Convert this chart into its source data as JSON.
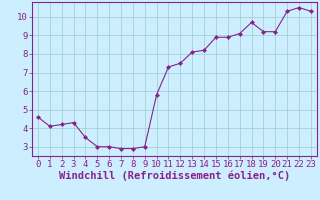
{
  "x": [
    0,
    1,
    2,
    3,
    4,
    5,
    6,
    7,
    8,
    9,
    10,
    11,
    12,
    13,
    14,
    15,
    16,
    17,
    18,
    19,
    20,
    21,
    22,
    23
  ],
  "y": [
    4.6,
    4.1,
    4.2,
    4.3,
    3.5,
    3.0,
    3.0,
    2.9,
    2.9,
    3.0,
    5.8,
    7.3,
    7.5,
    8.1,
    8.2,
    8.9,
    8.9,
    9.1,
    9.7,
    9.2,
    9.2,
    10.3,
    10.5,
    10.3
  ],
  "line_color": "#882288",
  "marker": "D",
  "marker_size": 2,
  "bg_color": "#cceeff",
  "grid_color": "#99cccc",
  "xlabel": "Windchill (Refroidissement éolien,°C)",
  "ylim": [
    2.5,
    10.8
  ],
  "xlim": [
    -0.5,
    23.5
  ],
  "yticks": [
    3,
    4,
    5,
    6,
    7,
    8,
    9,
    10
  ],
  "xticks": [
    0,
    1,
    2,
    3,
    4,
    5,
    6,
    7,
    8,
    9,
    10,
    11,
    12,
    13,
    14,
    15,
    16,
    17,
    18,
    19,
    20,
    21,
    22,
    23
  ],
  "spine_color": "#882288",
  "label_color": "#882288",
  "tick_color": "#882288",
  "font_size": 6.5,
  "xlabel_font_size": 7.5
}
